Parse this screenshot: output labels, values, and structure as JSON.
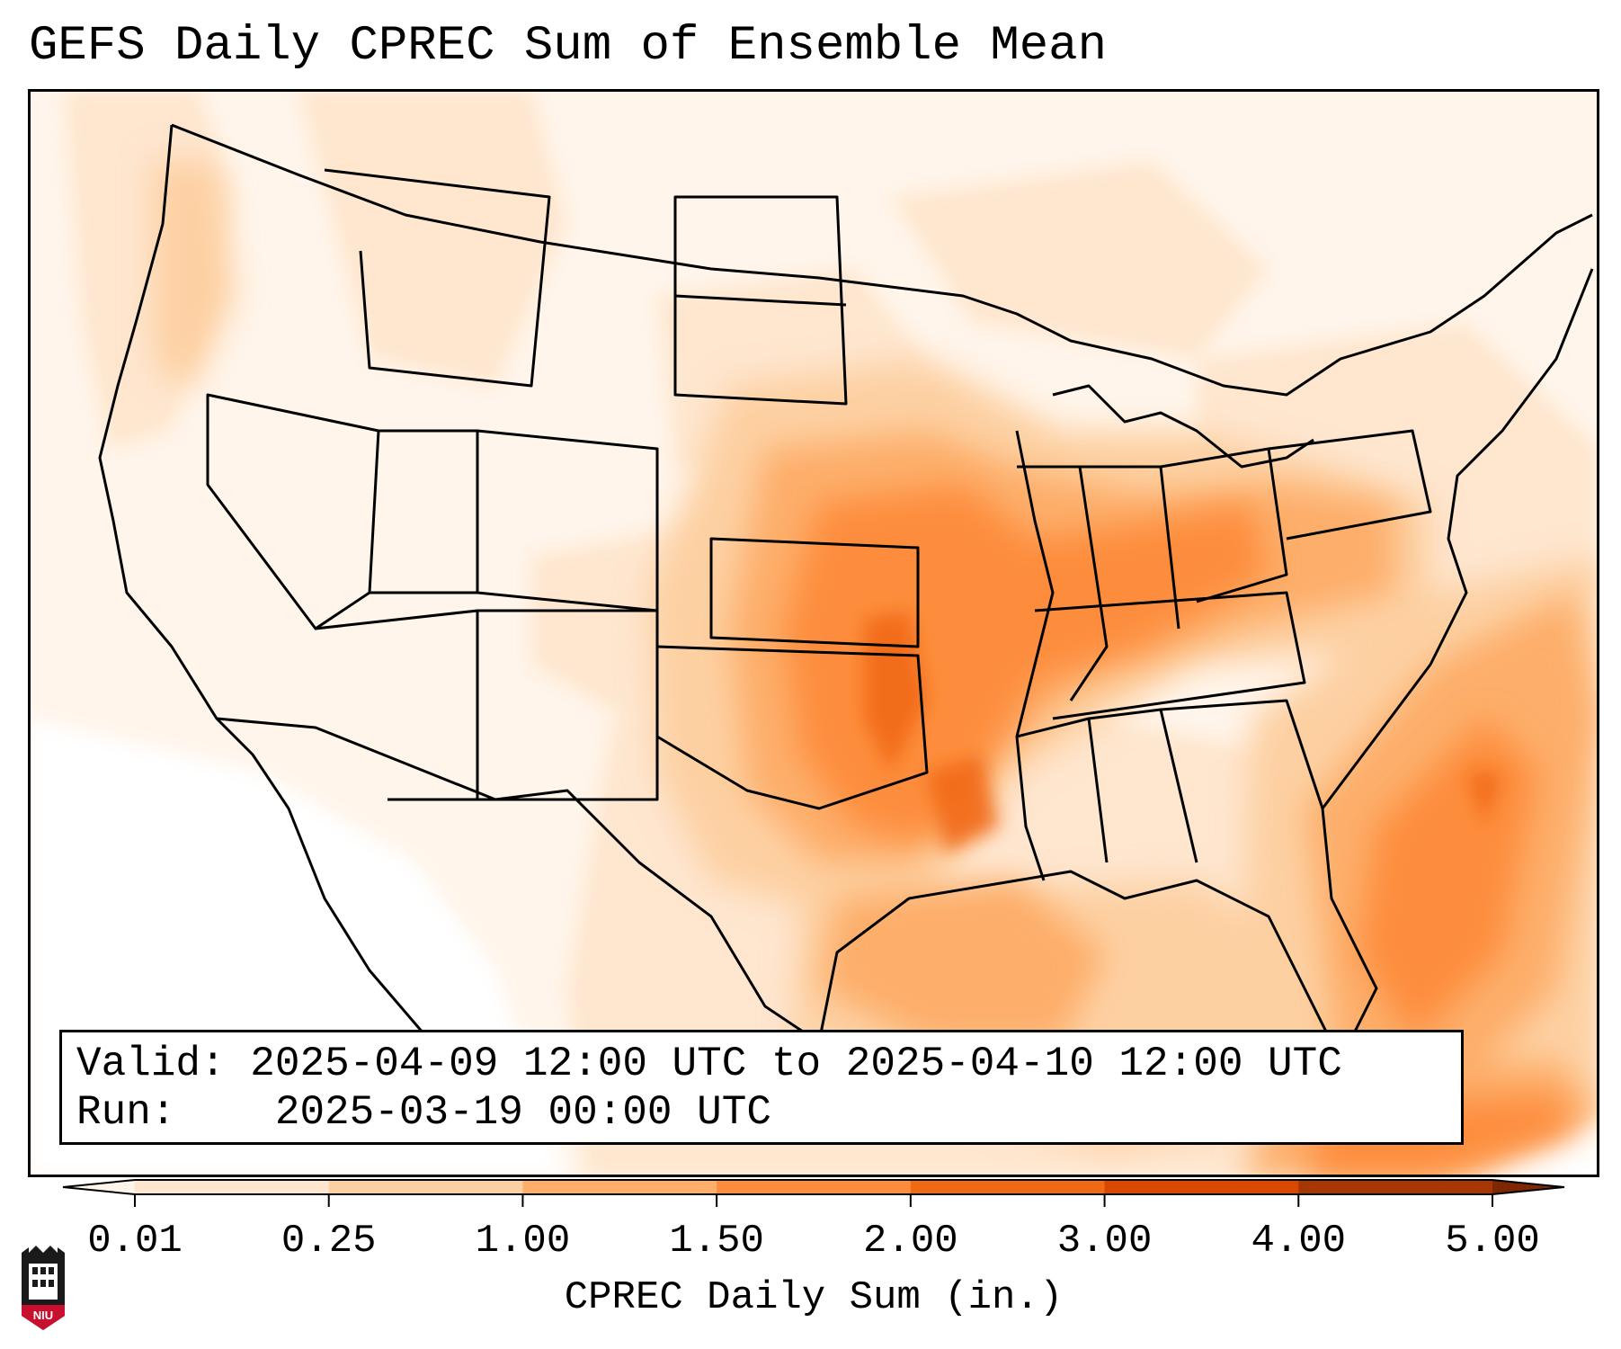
{
  "title": "GEFS Daily CPREC Sum of Ensemble Mean",
  "info": {
    "valid_label": "Valid:",
    "valid_value": "2025-04-09 12:00 UTC to 2025-04-10 12:00 UTC",
    "run_label": "Run:",
    "run_value": "2025-03-19 00:00 UTC"
  },
  "colorbar": {
    "label": "CPREC Daily Sum (in.)",
    "ticks": [
      "0.01",
      "0.25",
      "1.00",
      "1.50",
      "2.00",
      "3.00",
      "4.00",
      "5.00"
    ],
    "colors": [
      "#fff5eb",
      "#fee6ce",
      "#fdd0a2",
      "#fdae6b",
      "#fd8d3c",
      "#f16913",
      "#d94801",
      "#a63603",
      "#7f2704"
    ],
    "extend": "both"
  },
  "map": {
    "domain": "CONUS",
    "background_color": "#ffffff",
    "state_line_color": "#000000"
  },
  "logo_icon": "niu-logo-icon",
  "logo_text": "NIU"
}
